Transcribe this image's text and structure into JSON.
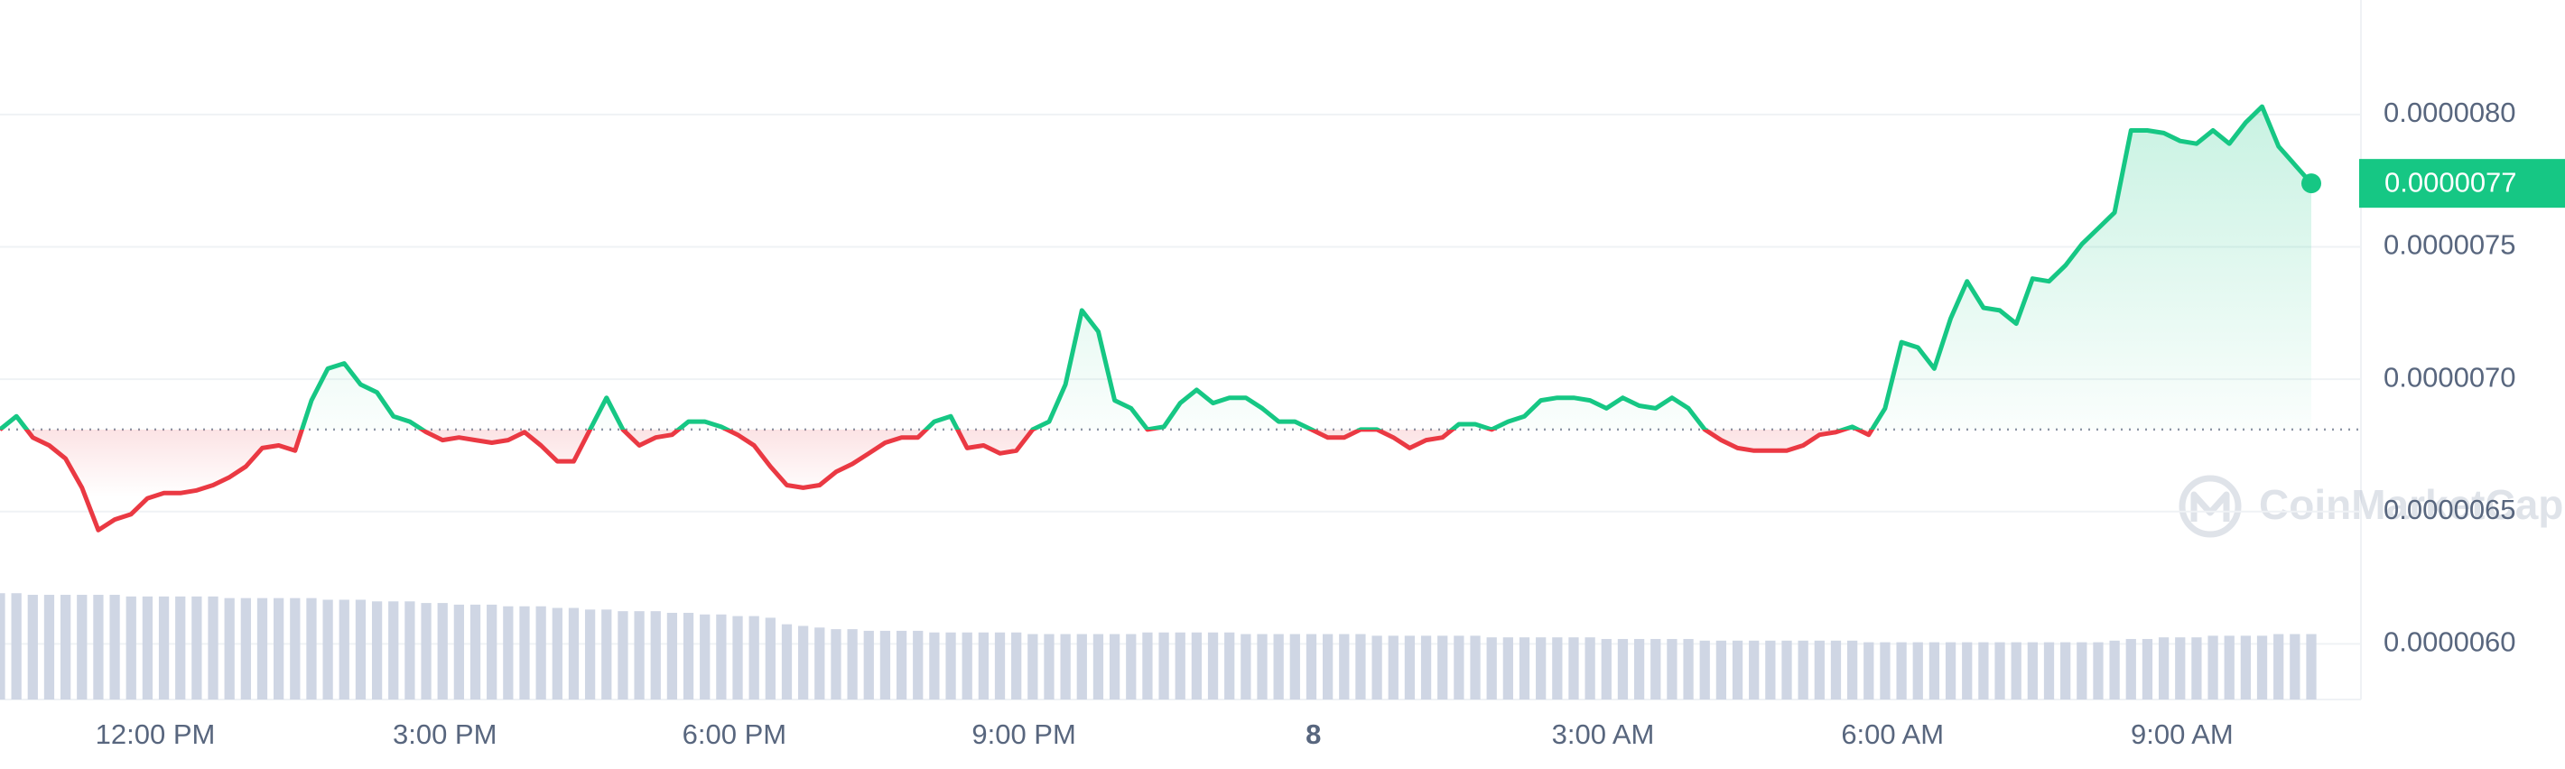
{
  "chart_data": {
    "type": "line",
    "xtick_labels": [
      "12:00 PM",
      "3:00 PM",
      "6:00 PM",
      "9:00 PM",
      "8",
      "3:00 AM",
      "6:00 AM",
      "9:00 AM"
    ],
    "ylim": [
      5.79e-06,
      8.4e-06
    ],
    "yticks": [
      {
        "value": 6e-06,
        "label": "0.0000060"
      },
      {
        "value": 6.5e-06,
        "label": "0.0000065"
      },
      {
        "value": 7e-06,
        "label": "0.0000070"
      },
      {
        "value": 7.5e-06,
        "label": "0.0000075"
      },
      {
        "value": 8e-06,
        "label": "0.0000080"
      }
    ],
    "grid": true,
    "baseline": 6.81e-06,
    "up_color": "#16c784",
    "down_color": "#ea3943",
    "current_price": {
      "value": 7.74e-06,
      "label": "0.0000077"
    },
    "watermark": "CoinMarketCap",
    "values": [
      6.81e-06,
      6.86e-06,
      6.78e-06,
      6.75e-06,
      6.7e-06,
      6.59e-06,
      6.43e-06,
      6.47e-06,
      6.49e-06,
      6.55e-06,
      6.57e-06,
      6.57e-06,
      6.58e-06,
      6.6e-06,
      6.63e-06,
      6.67e-06,
      6.74e-06,
      6.75e-06,
      6.73e-06,
      6.92e-06,
      7.04e-06,
      7.06e-06,
      6.98e-06,
      6.95e-06,
      6.86e-06,
      6.84e-06,
      6.8e-06,
      6.77e-06,
      6.78e-06,
      6.77e-06,
      6.76e-06,
      6.77e-06,
      6.8e-06,
      6.75e-06,
      6.69e-06,
      6.69e-06,
      6.81e-06,
      6.93e-06,
      6.81e-06,
      6.75e-06,
      6.78e-06,
      6.79e-06,
      6.84e-06,
      6.84e-06,
      6.82e-06,
      6.79e-06,
      6.75e-06,
      6.67e-06,
      6.6e-06,
      6.59e-06,
      6.6e-06,
      6.65e-06,
      6.68e-06,
      6.72e-06,
      6.76e-06,
      6.78e-06,
      6.78e-06,
      6.84e-06,
      6.86e-06,
      6.74e-06,
      6.75e-06,
      6.72e-06,
      6.73e-06,
      6.81e-06,
      6.84e-06,
      6.98e-06,
      7.26e-06,
      7.18e-06,
      6.92e-06,
      6.89e-06,
      6.81e-06,
      6.82e-06,
      6.91e-06,
      6.96e-06,
      6.91e-06,
      6.93e-06,
      6.93e-06,
      6.89e-06,
      6.84e-06,
      6.84e-06,
      6.81e-06,
      6.78e-06,
      6.78e-06,
      6.81e-06,
      6.81e-06,
      6.78e-06,
      6.74e-06,
      6.77e-06,
      6.78e-06,
      6.83e-06,
      6.83e-06,
      6.81e-06,
      6.84e-06,
      6.86e-06,
      6.92e-06,
      6.93e-06,
      6.93e-06,
      6.92e-06,
      6.89e-06,
      6.93e-06,
      6.9e-06,
      6.89e-06,
      6.93e-06,
      6.89e-06,
      6.81e-06,
      6.77e-06,
      6.74e-06,
      6.73e-06,
      6.73e-06,
      6.73e-06,
      6.75e-06,
      6.79e-06,
      6.8e-06,
      6.82e-06,
      6.79e-06,
      6.89e-06,
      7.14e-06,
      7.12e-06,
      7.04e-06,
      7.23e-06,
      7.37e-06,
      7.27e-06,
      7.26e-06,
      7.21e-06,
      7.38e-06,
      7.37e-06,
      7.43e-06,
      7.51e-06,
      7.57e-06,
      7.63e-06,
      7.94e-06,
      7.94e-06,
      7.93e-06,
      7.9e-06,
      7.89e-06,
      7.94e-06,
      7.89e-06,
      7.97e-06,
      8.03e-06,
      7.88e-06,
      7.81e-06,
      7.74e-06
    ],
    "volume": {
      "color": "#cfd6e4",
      "values": [
        65,
        65,
        64,
        64,
        64,
        64,
        64,
        64,
        63,
        63,
        63,
        63,
        63,
        63,
        62,
        62,
        62,
        62,
        62,
        62,
        61,
        61,
        61,
        60,
        60,
        60,
        59,
        59,
        58,
        58,
        58,
        57,
        57,
        57,
        56,
        56,
        55,
        55,
        54,
        54,
        54,
        53,
        53,
        52,
        52,
        51,
        51,
        50,
        46,
        45,
        44,
        43,
        43,
        42,
        42,
        42,
        42,
        41,
        41,
        41,
        41,
        41,
        41,
        40,
        40,
        40,
        40,
        40,
        40,
        40,
        41,
        41,
        41,
        41,
        41,
        41,
        40,
        40,
        40,
        40,
        40,
        40,
        40,
        40,
        39,
        39,
        39,
        39,
        39,
        39,
        39,
        38,
        38,
        38,
        38,
        38,
        38,
        38,
        37,
        37,
        37,
        37,
        37,
        37,
        36,
        36,
        36,
        36,
        36,
        36,
        36,
        36,
        36,
        36,
        35,
        35,
        35,
        35,
        35,
        35,
        35,
        35,
        35,
        35,
        35,
        35,
        35,
        35,
        35,
        36,
        37,
        37,
        38,
        38,
        38,
        39,
        39,
        39,
        39,
        40,
        40,
        40
      ]
    }
  }
}
